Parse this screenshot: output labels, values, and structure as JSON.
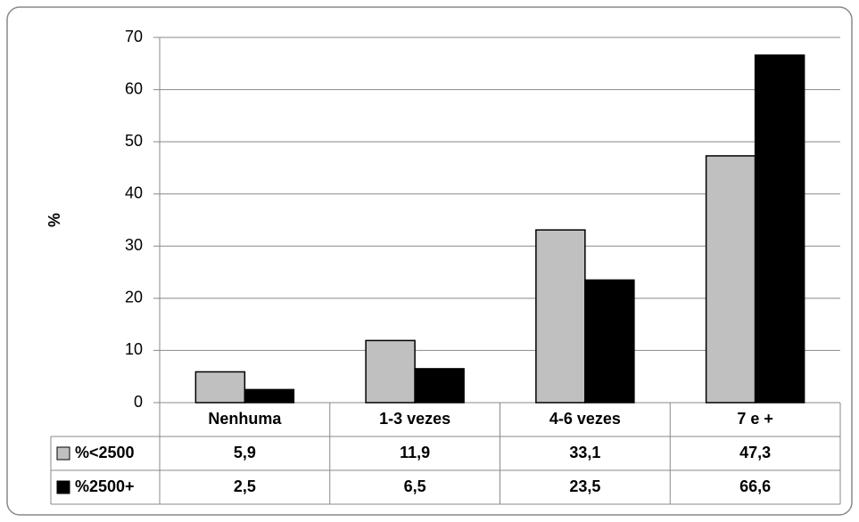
{
  "chart_data": {
    "type": "bar",
    "y_label": "%",
    "categories": [
      "Nenhuma",
      "1-3 vezes",
      "4-6 vezes",
      "7 e +"
    ],
    "series": [
      {
        "name": "%<2500",
        "color": "#c0c0c0",
        "values": [
          5.9,
          11.9,
          33.1,
          47.3
        ],
        "value_labels": [
          "5,9",
          "11,9",
          "33,1",
          "47,3"
        ]
      },
      {
        "name": "%2500+",
        "color": "#000000",
        "values": [
          2.5,
          6.5,
          23.5,
          66.6
        ],
        "value_labels": [
          "2,5",
          "6,5",
          "23,5",
          "66,6"
        ]
      }
    ],
    "ylim": [
      0,
      70
    ],
    "yticks": [
      0,
      10,
      20,
      30,
      40,
      50,
      60,
      70
    ],
    "grid": true
  }
}
